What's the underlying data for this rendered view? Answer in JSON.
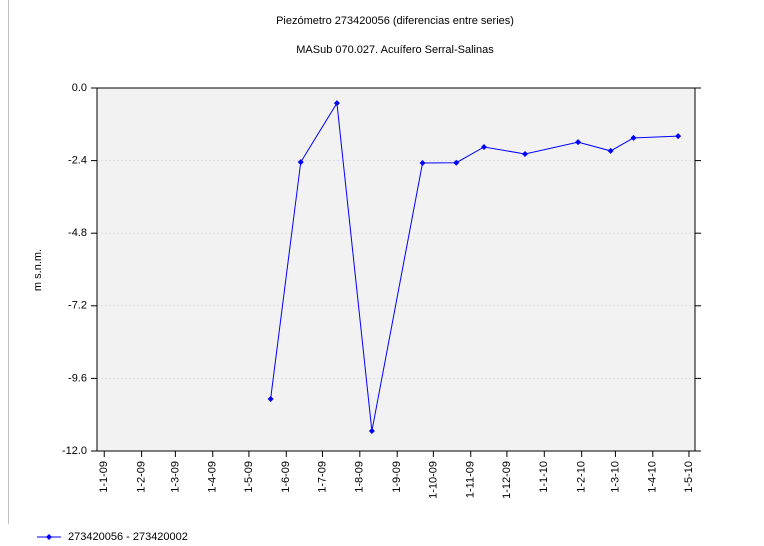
{
  "chart_data": {
    "type": "line",
    "title": "Piezómetro 273420056 (diferencias entre series)",
    "subtitle": "MASub 070.027. Acuífero Serral-Salinas",
    "y_label": "m s.n.m.",
    "x": [
      "2009-05-19",
      "2009-06-13",
      "2009-07-13",
      "2009-08-11",
      "2009-09-22",
      "2009-10-20",
      "2009-11-12",
      "2009-12-16",
      "2010-01-29",
      "2010-02-25",
      "2010-03-16",
      "2010-04-22"
    ],
    "series": [
      {
        "name": "273420056 - 273420002",
        "color": "#0000ff",
        "values": [
          -10.28,
          -2.45,
          -0.5,
          -11.34,
          -2.48,
          -2.47,
          -1.95,
          -2.18,
          -1.79,
          -2.08,
          -1.65,
          -1.59
        ]
      }
    ],
    "xlim": [
      "2008-12-26",
      "2010-05-06"
    ],
    "xticks": [
      {
        "value": "2009-01-01",
        "label": "1-1-09"
      },
      {
        "value": "2009-02-01",
        "label": "1-2-09"
      },
      {
        "value": "2009-03-01",
        "label": "1-3-09"
      },
      {
        "value": "2009-04-01",
        "label": "1-4-09"
      },
      {
        "value": "2009-05-01",
        "label": "1-5-09"
      },
      {
        "value": "2009-06-01",
        "label": "1-6-09"
      },
      {
        "value": "2009-07-01",
        "label": "1-7-09"
      },
      {
        "value": "2009-08-01",
        "label": "1-8-09"
      },
      {
        "value": "2009-09-01",
        "label": "1-9-09"
      },
      {
        "value": "2009-10-01",
        "label": "1-10-09"
      },
      {
        "value": "2009-11-01",
        "label": "1-11-09"
      },
      {
        "value": "2009-12-01",
        "label": "1-12-09"
      },
      {
        "value": "2010-01-01",
        "label": "1-1-10"
      },
      {
        "value": "2010-02-01",
        "label": "1-2-10"
      },
      {
        "value": "2010-03-01",
        "label": "1-3-10"
      },
      {
        "value": "2010-04-01",
        "label": "1-4-10"
      },
      {
        "value": "2010-05-01",
        "label": "1-5-10"
      }
    ],
    "ylim": [
      -12,
      0
    ],
    "yticks": [
      {
        "value": 0,
        "label": "0.0"
      },
      -2.4,
      -4.8,
      -7.2,
      -9.6,
      {
        "value": -12,
        "label": "-12.0"
      }
    ],
    "grid": true,
    "legend": "bottom-left"
  }
}
